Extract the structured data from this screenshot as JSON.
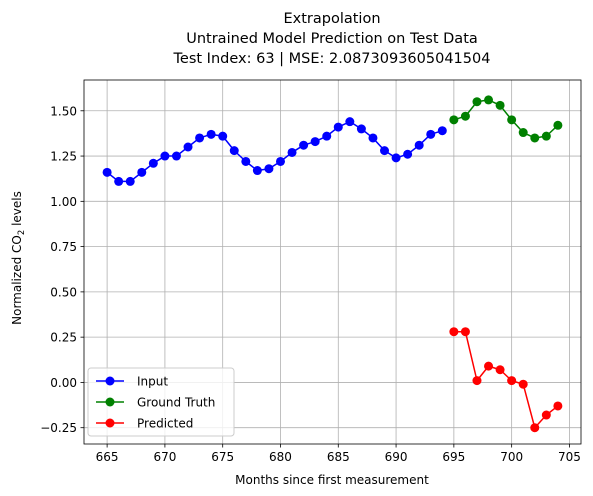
{
  "chart_data": {
    "type": "line",
    "title_lines": [
      "Extrapolation",
      "Untrained Model Prediction on Test Data",
      "Test Index: 63 | MSE: 2.0873093605041504"
    ],
    "xlabel": "Months since first measurement",
    "ylabel_main": "Normalized CO",
    "ylabel_sub": "2",
    "ylabel_tail": " levels",
    "xlim": [
      663,
      706
    ],
    "ylim": [
      -0.34,
      1.67
    ],
    "xticks": [
      665,
      670,
      675,
      680,
      685,
      690,
      695,
      700,
      705
    ],
    "yticks": [
      -0.25,
      0.0,
      0.25,
      0.5,
      0.75,
      1.0,
      1.25,
      1.5
    ],
    "ytick_labels": [
      "−0.25",
      "0.00",
      "0.25",
      "0.50",
      "0.75",
      "1.00",
      "1.25",
      "1.50"
    ],
    "grid": true,
    "legend_placement": "lower-left",
    "series": [
      {
        "name": "Input",
        "color": "#0000ff",
        "x": [
          665,
          666,
          667,
          668,
          669,
          670,
          671,
          672,
          673,
          674,
          675,
          676,
          677,
          678,
          679,
          680,
          681,
          682,
          683,
          684,
          685,
          686,
          687,
          688,
          689,
          690,
          691,
          692,
          693,
          694
        ],
        "values": [
          1.16,
          1.11,
          1.11,
          1.16,
          1.21,
          1.25,
          1.25,
          1.3,
          1.35,
          1.37,
          1.36,
          1.28,
          1.22,
          1.17,
          1.18,
          1.22,
          1.27,
          1.31,
          1.33,
          1.36,
          1.41,
          1.44,
          1.4,
          1.35,
          1.28,
          1.24,
          1.26,
          1.31,
          1.37,
          1.39
        ]
      },
      {
        "name": "Ground Truth",
        "color": "#008000",
        "x": [
          695,
          696,
          697,
          698,
          699,
          700,
          701,
          702,
          703,
          704
        ],
        "values": [
          1.45,
          1.47,
          1.55,
          1.56,
          1.53,
          1.45,
          1.38,
          1.35,
          1.36,
          1.42
        ]
      },
      {
        "name": "Predicted",
        "color": "#ff0000",
        "x": [
          695,
          696,
          697,
          698,
          699,
          700,
          701,
          702,
          703,
          704
        ],
        "values": [
          0.28,
          0.28,
          0.01,
          0.09,
          0.07,
          0.01,
          -0.01,
          -0.25,
          -0.18,
          -0.13
        ]
      }
    ]
  }
}
